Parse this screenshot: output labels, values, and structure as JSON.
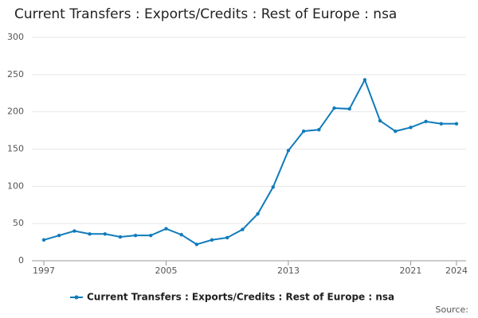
{
  "chart_data": {
    "type": "line",
    "title": "Current Transfers : Exports/Credits : Rest of Europe : nsa",
    "source": "Source:",
    "x": [
      1997,
      1998,
      1999,
      2000,
      2001,
      2002,
      2003,
      2004,
      2005,
      2006,
      2007,
      2008,
      2009,
      2010,
      2011,
      2012,
      2013,
      2014,
      2015,
      2016,
      2017,
      2018,
      2019,
      2020,
      2021,
      2022,
      2023,
      2024
    ],
    "series": [
      {
        "name": "Current Transfers : Exports/Credits : Rest of Europe : nsa",
        "color": "#0f7bbb",
        "values": [
          28,
          34,
          40,
          36,
          36,
          32,
          34,
          34,
          43,
          35,
          22,
          28,
          31,
          42,
          63,
          99,
          148,
          174,
          176,
          205,
          204,
          243,
          188,
          174,
          179,
          187,
          184,
          184
        ]
      }
    ],
    "xlim": [
      1997,
      2024
    ],
    "xticks": [
      1997,
      2005,
      2013,
      2021,
      2024
    ],
    "ylim": [
      0,
      300
    ],
    "yticks": [
      0,
      50,
      100,
      150,
      200,
      250,
      300
    ],
    "grid": true
  }
}
